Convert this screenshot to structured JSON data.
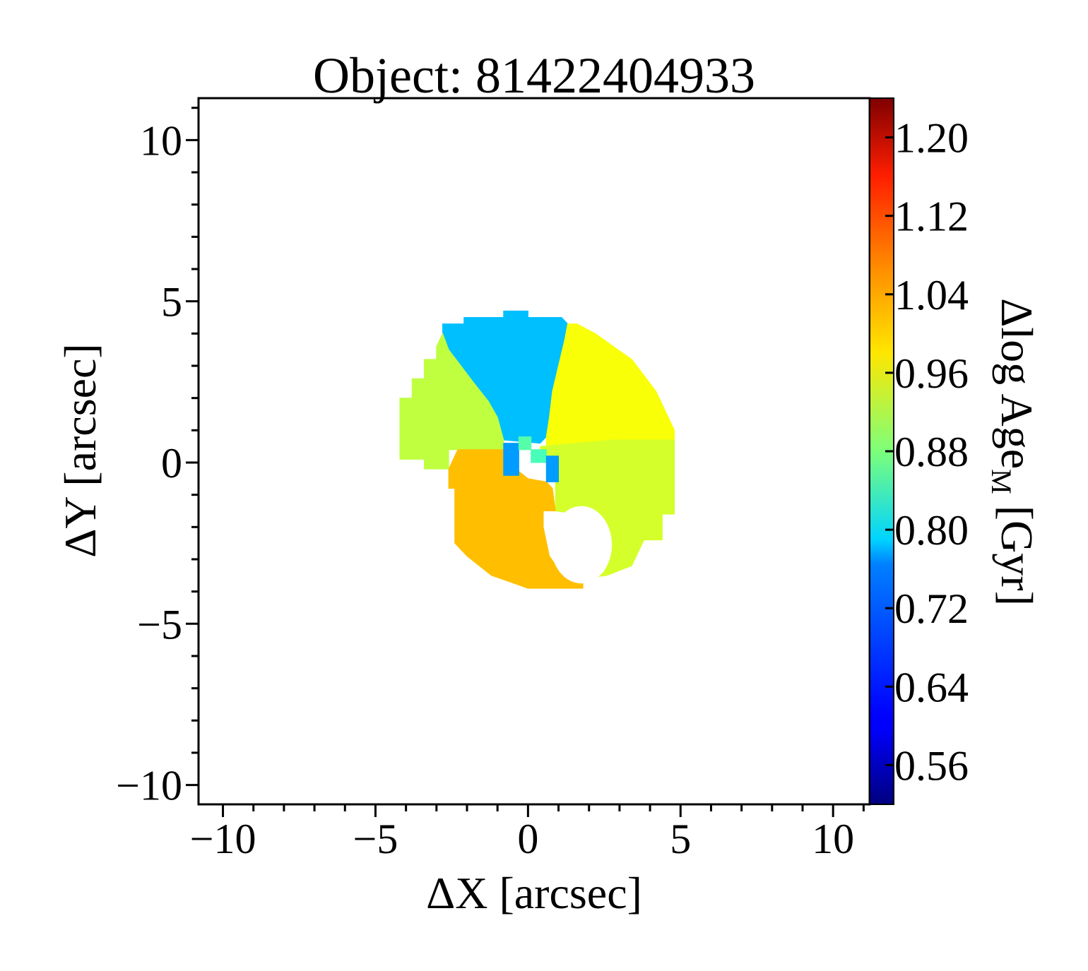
{
  "chart_data": {
    "type": "heatmap",
    "title": "Object: 81422404933",
    "xlabel": "ΔX [arcsec]",
    "ylabel": "ΔY [arcsec]",
    "xlim": [
      -10.8,
      11.2
    ],
    "ylim": [
      -10.6,
      11.3
    ],
    "xticks": [
      -10,
      -5,
      0,
      5,
      10
    ],
    "yticks": [
      -10,
      -5,
      0,
      5,
      10
    ],
    "xtick_labels": [
      "−10",
      "−5",
      "0",
      "5",
      "10"
    ],
    "ytick_labels": [
      "−10",
      "−5",
      "0",
      "5",
      "10"
    ],
    "colorbar": {
      "label_main": "Δlog Age",
      "label_sub": "M",
      "label_unit": " [Gyr]",
      "range": [
        0.52,
        1.24
      ],
      "ticks": [
        0.56,
        0.64,
        0.72,
        0.8,
        0.88,
        0.96,
        1.04,
        1.12,
        1.2
      ],
      "tick_labels": [
        "0.56",
        "0.64",
        "0.72",
        "0.80",
        "0.88",
        "0.96",
        "1.04",
        "1.12",
        "1.20"
      ],
      "colormap": "jet"
    },
    "regions": [
      {
        "value": 0.745,
        "polygon": [
          [
            -2.8,
            4.0
          ],
          [
            -2.8,
            4.3
          ],
          [
            -2.1,
            4.3
          ],
          [
            -2.1,
            4.5
          ],
          [
            -0.8,
            4.5
          ],
          [
            -0.8,
            4.7
          ],
          [
            0,
            4.7
          ],
          [
            0,
            4.5
          ],
          [
            1.1,
            4.5
          ],
          [
            1.3,
            4.3
          ],
          [
            1.2,
            3.8
          ],
          [
            1.0,
            3.0
          ],
          [
            0.8,
            2.2
          ],
          [
            0.7,
            1.4
          ],
          [
            0.6,
            0.8
          ],
          [
            0.4,
            0.6
          ],
          [
            -0.8,
            0.7
          ],
          [
            -1.0,
            1.4
          ],
          [
            -1.3,
            1.9
          ],
          [
            -1.8,
            2.5
          ],
          [
            -2.2,
            3.0
          ],
          [
            -2.6,
            3.5
          ]
        ]
      },
      {
        "value": 0.925,
        "polygon": [
          [
            -2.8,
            4.0
          ],
          [
            -2.6,
            3.5
          ],
          [
            -2.2,
            3.0
          ],
          [
            -1.8,
            2.5
          ],
          [
            -1.3,
            1.9
          ],
          [
            -1.0,
            1.4
          ],
          [
            -0.8,
            0.7
          ],
          [
            -0.8,
            0.4
          ],
          [
            -2.6,
            0.4
          ],
          [
            -2.6,
            -0.2
          ],
          [
            -3.4,
            -0.2
          ],
          [
            -3.4,
            0.1
          ],
          [
            -4.2,
            0.1
          ],
          [
            -4.2,
            2.0
          ],
          [
            -3.8,
            2.0
          ],
          [
            -3.8,
            2.6
          ],
          [
            -3.4,
            2.6
          ],
          [
            -3.4,
            3.2
          ],
          [
            -3.0,
            3.2
          ],
          [
            -3.0,
            3.6
          ]
        ]
      },
      {
        "value": 0.965,
        "polygon": [
          [
            1.6,
            4.3
          ],
          [
            2.2,
            4.0
          ],
          [
            2.8,
            3.6
          ],
          [
            3.4,
            3.2
          ],
          [
            3.8,
            2.7
          ],
          [
            4.2,
            2.2
          ],
          [
            4.6,
            1.4
          ],
          [
            4.8,
            1.0
          ],
          [
            4.8,
            0.7
          ],
          [
            2.8,
            0.7
          ],
          [
            0.6,
            0.5
          ],
          [
            0.6,
            0.8
          ],
          [
            0.7,
            1.4
          ],
          [
            0.8,
            2.2
          ],
          [
            1.0,
            3.0
          ],
          [
            1.2,
            3.8
          ],
          [
            1.3,
            4.3
          ]
        ]
      },
      {
        "value": 0.94,
        "polygon": [
          [
            0.4,
            0.5
          ],
          [
            2.8,
            0.7
          ],
          [
            4.8,
            0.7
          ],
          [
            4.8,
            -1.6
          ],
          [
            4.4,
            -1.6
          ],
          [
            4.4,
            -2.4
          ],
          [
            3.8,
            -2.4
          ],
          [
            3.4,
            -3.2
          ],
          [
            2.6,
            -3.5
          ],
          [
            1.8,
            -3.6
          ],
          [
            2.5,
            -3.4
          ],
          [
            2.5,
            -2.6
          ],
          [
            2.2,
            -2.0
          ],
          [
            1.6,
            -1.6
          ],
          [
            0.9,
            -1.5
          ],
          [
            0.9,
            -0.4
          ],
          [
            0.8,
            0.0
          ],
          [
            0.4,
            0.1
          ]
        ]
      },
      {
        "value": 1.015,
        "polygon": [
          [
            -0.8,
            0.4
          ],
          [
            -0.8,
            0.0
          ],
          [
            -0.4,
            0.0
          ],
          [
            -0.4,
            -0.2
          ],
          [
            0,
            -0.5
          ],
          [
            0.6,
            -0.6
          ],
          [
            0.8,
            -0.8
          ],
          [
            0.9,
            -1.5
          ],
          [
            0.5,
            -1.5
          ],
          [
            0.5,
            -2.0
          ],
          [
            0.7,
            -2.9
          ],
          [
            1.0,
            -3.3
          ],
          [
            1.4,
            -3.6
          ],
          [
            1.8,
            -3.6
          ],
          [
            1.8,
            -3.9
          ],
          [
            0,
            -3.9
          ],
          [
            -0.6,
            -3.7
          ],
          [
            -1.2,
            -3.5
          ],
          [
            -1.6,
            -3.2
          ],
          [
            -2.0,
            -2.9
          ],
          [
            -2.4,
            -2.5
          ],
          [
            -2.4,
            -0.8
          ],
          [
            -2.6,
            -0.8
          ],
          [
            -2.6,
            -0.2
          ],
          [
            -2.3,
            0.4
          ]
        ]
      },
      {
        "value": 0.72,
        "polygon": [
          [
            -0.8,
            0.6
          ],
          [
            -0.3,
            0.6
          ],
          [
            -0.3,
            -0.4
          ],
          [
            -0.8,
            -0.4
          ]
        ]
      },
      {
        "value": 0.85,
        "polygon": [
          [
            -0.3,
            0.8
          ],
          [
            0.1,
            0.8
          ],
          [
            0.1,
            0.4
          ],
          [
            -0.3,
            0.4
          ]
        ]
      },
      {
        "value": 0.84,
        "polygon": [
          [
            0.1,
            0.4
          ],
          [
            0.6,
            0.4
          ],
          [
            0.6,
            0.0
          ],
          [
            0.1,
            0.0
          ]
        ]
      },
      {
        "value": 0.72,
        "polygon": [
          [
            0.6,
            0.2
          ],
          [
            1.0,
            0.2
          ],
          [
            1.0,
            -0.6
          ],
          [
            0.6,
            -0.6
          ]
        ]
      }
    ],
    "hole": {
      "cx": 1.75,
      "cy": -2.55,
      "rx": 1.0,
      "ry": 1.2
    }
  }
}
